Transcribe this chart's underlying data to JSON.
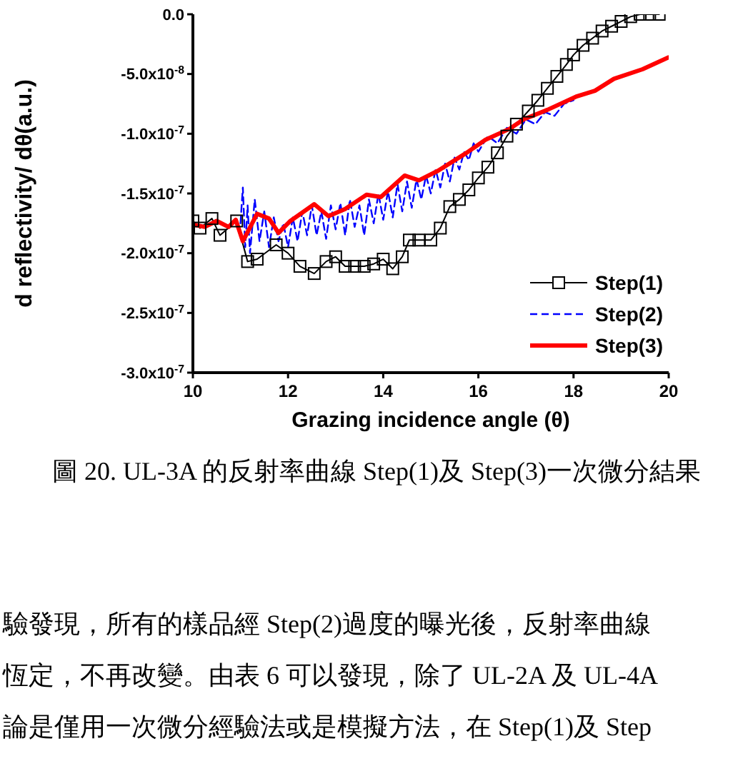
{
  "chart_data": {
    "type": "line",
    "xlabel": "Grazing incidence angle (θ)",
    "ylabel": "d reflectivity/ dθ(a.u.)",
    "xlim": [
      10,
      20
    ],
    "xticks": [
      10,
      12,
      14,
      16,
      18,
      20
    ],
    "ylim": [
      -3e-07,
      0
    ],
    "yticks": [
      {
        "value": 0,
        "label": "0.0"
      },
      {
        "value": -5e-08,
        "label": "-5.0x10$^{-8}$"
      },
      {
        "value": -1e-07,
        "label": "-1.0x10$^{-7}$"
      },
      {
        "value": -1.5e-07,
        "label": "-1.5x10$^{-7}$"
      },
      {
        "value": -2e-07,
        "label": "-2.0x10$^{-7}$"
      },
      {
        "value": -2.5e-07,
        "label": "-2.5x10$^{-7}$"
      },
      {
        "value": -3e-07,
        "label": "-3.0x10$^{-7}$"
      }
    ],
    "legend": "bottom right",
    "series": [
      {
        "name": "Step(1)",
        "color": "#000000",
        "marker": "square",
        "line_style": "solid",
        "x": [
          10,
          10.15,
          10.4,
          10.57,
          10.92,
          11.15,
          11.35,
          11.75,
          12,
          12.25,
          12.55,
          12.8,
          13,
          13.2,
          13.4,
          13.6,
          13.8,
          14,
          14.2,
          14.4,
          14.55,
          14.75,
          15,
          15.2,
          15.4,
          15.6,
          15.8,
          16,
          16.2,
          16.4,
          16.6,
          16.8,
          17.05,
          17.25,
          17.45,
          17.65,
          17.85,
          18,
          18.2,
          18.4,
          18.6,
          18.8,
          19,
          19.2,
          19.4,
          19.6,
          19.8
        ],
        "values": [
          -1.73e-07,
          -1.79e-07,
          -1.71e-07,
          -1.85e-07,
          -1.73e-07,
          -2.07e-07,
          -2.05e-07,
          -1.93e-07,
          -2e-07,
          -2.11e-07,
          -2.17e-07,
          -2.07e-07,
          -2.03e-07,
          -2.11e-07,
          -2.11e-07,
          -2.11e-07,
          -2.09e-07,
          -2.05e-07,
          -2.13e-07,
          -2.03e-07,
          -1.89e-07,
          -1.89e-07,
          -1.89e-07,
          -1.79e-07,
          -1.61e-07,
          -1.55e-07,
          -1.47e-07,
          -1.37e-07,
          -1.28e-07,
          -1.16e-07,
          -1.02e-07,
          -9.2e-08,
          -8.1e-08,
          -7.2e-08,
          -6.2e-08,
          -5.2e-08,
          -4.2e-08,
          -3.4e-08,
          -2.6e-08,
          -2e-08,
          -1.4e-08,
          -1e-08,
          -6e-09,
          -2e-09,
          0,
          0,
          0
        ]
      },
      {
        "name": "Step(2)",
        "color": "#0000ff",
        "marker": "none",
        "line_style": "dashed",
        "x": [
          11,
          11.05,
          11.1,
          11.15,
          11.2,
          11.3,
          11.4,
          11.5,
          11.6,
          11.7,
          11.8,
          11.9,
          12,
          12.1,
          12.2,
          12.3,
          12.4,
          12.5,
          12.6,
          12.7,
          12.8,
          12.9,
          13,
          13.1,
          13.2,
          13.3,
          13.4,
          13.5,
          13.6,
          13.7,
          13.8,
          13.9,
          14,
          14.1,
          14.2,
          14.3,
          14.4,
          14.5,
          14.6,
          14.7,
          14.8,
          14.9,
          15,
          15.1,
          15.2,
          15.3,
          15.4,
          15.5,
          15.6,
          15.7,
          15.8,
          15.9,
          16,
          16.2,
          16.4,
          16.6,
          16.8,
          17,
          17.2,
          17.4,
          17.6,
          17.8,
          18
        ],
        "values": [
          -1.75e-07,
          -1.45e-07,
          -1.95e-07,
          -1.6e-07,
          -2e-07,
          -1.55e-07,
          -1.9e-07,
          -1.65e-07,
          -1.95e-07,
          -1.7e-07,
          -1.9e-07,
          -1.75e-07,
          -1.95e-07,
          -1.7e-07,
          -1.9e-07,
          -1.65e-07,
          -1.85e-07,
          -1.6e-07,
          -1.85e-07,
          -1.65e-07,
          -1.88e-07,
          -1.6e-07,
          -1.8e-07,
          -1.58e-07,
          -1.85e-07,
          -1.55e-07,
          -1.78e-07,
          -1.6e-07,
          -1.85e-07,
          -1.55e-07,
          -1.75e-07,
          -1.5e-07,
          -1.72e-07,
          -1.48e-07,
          -1.7e-07,
          -1.42e-07,
          -1.65e-07,
          -1.4e-07,
          -1.62e-07,
          -1.38e-07,
          -1.55e-07,
          -1.35e-07,
          -1.5e-07,
          -1.3e-07,
          -1.45e-07,
          -1.25e-07,
          -1.4e-07,
          -1.2e-07,
          -1.3e-07,
          -1.15e-07,
          -1.22e-07,
          -1.08e-07,
          -1.15e-07,
          -1.02e-07,
          -1.08e-07,
          -9.5e-08,
          -1e-07,
          -8.8e-08,
          -9.2e-08,
          -8.2e-08,
          -8.5e-08,
          -7.5e-08,
          -7.2e-08
        ]
      },
      {
        "name": "Step(3)",
        "color": "#ff0000",
        "marker": "none",
        "line_style": "solid",
        "x": [
          10,
          10.25,
          10.5,
          10.75,
          10.9,
          11.05,
          11.35,
          11.6,
          11.8,
          12.05,
          12.55,
          12.85,
          13.2,
          13.65,
          13.95,
          14.45,
          14.75,
          15.15,
          15.75,
          16.15,
          16.65,
          16.95,
          17.45,
          18.05,
          18.45,
          18.85,
          19.45,
          20
        ],
        "values": [
          -1.76e-07,
          -1.78e-07,
          -1.73e-07,
          -1.78e-07,
          -1.72e-07,
          -1.9e-07,
          -1.67e-07,
          -1.71e-07,
          -1.83e-07,
          -1.73e-07,
          -1.59e-07,
          -1.69e-07,
          -1.63e-07,
          -1.51e-07,
          -1.53e-07,
          -1.35e-07,
          -1.39e-07,
          -1.31e-07,
          -1.16e-07,
          -1.05e-07,
          -9.6e-08,
          -8.8e-08,
          -8e-08,
          -6.9e-08,
          -6.4e-08,
          -5.4e-08,
          -4.6e-08,
          -3.6e-08
        ]
      }
    ],
    "annotations": [
      "圖 20. UL-3A 的反射率曲線 Step(1)及 Step(3)一次微分結果",
      "驗發現，所有的樣品經 Step(2)過度的曝光後，反射率曲線",
      "恆定，不再改變。由表 6 可以發現，除了 UL-2A 及 UL-4A",
      "論是僅用一次微分經驗法或是模擬方法，在 Step(1)及 Step"
    ]
  }
}
